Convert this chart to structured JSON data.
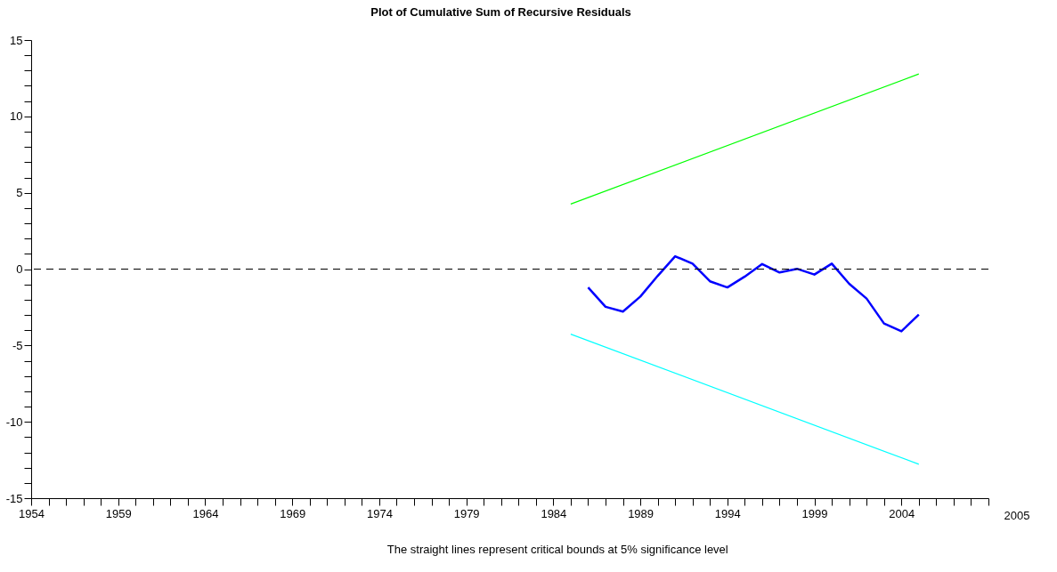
{
  "chart_data": {
    "type": "line",
    "title": "Plot of Cumulative Sum of Recursive Residuals",
    "annotations": [
      "The straight lines represent critical bounds at 5% significance level",
      "2005"
    ],
    "xlim": [
      1954,
      2009
    ],
    "ylim": [
      -15,
      15
    ],
    "xticks": [
      1954,
      {
        "value": 1955,
        "label": null
      },
      {
        "value": 1956,
        "label": null
      },
      {
        "value": 1957,
        "label": null
      },
      {
        "value": 1958,
        "label": null
      },
      1959,
      {
        "value": 1960,
        "label": null
      },
      {
        "value": 1961,
        "label": null
      },
      {
        "value": 1962,
        "label": null
      },
      {
        "value": 1963,
        "label": null
      },
      1964,
      {
        "value": 1965,
        "label": null
      },
      {
        "value": 1966,
        "label": null
      },
      {
        "value": 1967,
        "label": null
      },
      {
        "value": 1968,
        "label": null
      },
      1969,
      {
        "value": 1970,
        "label": null
      },
      {
        "value": 1971,
        "label": null
      },
      {
        "value": 1972,
        "label": null
      },
      {
        "value": 1973,
        "label": null
      },
      1974,
      {
        "value": 1975,
        "label": null
      },
      {
        "value": 1976,
        "label": null
      },
      {
        "value": 1977,
        "label": null
      },
      {
        "value": 1978,
        "label": null
      },
      1979,
      {
        "value": 1980,
        "label": null
      },
      {
        "value": 1981,
        "label": null
      },
      {
        "value": 1982,
        "label": null
      },
      {
        "value": 1983,
        "label": null
      },
      1984,
      {
        "value": 1985,
        "label": null
      },
      {
        "value": 1986,
        "label": null
      },
      {
        "value": 1987,
        "label": null
      },
      {
        "value": 1988,
        "label": null
      },
      1989,
      {
        "value": 1990,
        "label": null
      },
      {
        "value": 1991,
        "label": null
      },
      {
        "value": 1992,
        "label": null
      },
      {
        "value": 1993,
        "label": null
      },
      1994,
      {
        "value": 1995,
        "label": null
      },
      {
        "value": 1996,
        "label": null
      },
      {
        "value": 1997,
        "label": null
      },
      {
        "value": 1998,
        "label": null
      },
      1999,
      {
        "value": 2000,
        "label": null
      },
      {
        "value": 2001,
        "label": null
      },
      {
        "value": 2002,
        "label": null
      },
      {
        "value": 2003,
        "label": null
      },
      2004,
      {
        "value": 2005,
        "label": null
      },
      {
        "value": 2006,
        "label": null
      },
      {
        "value": 2007,
        "label": null
      },
      {
        "value": 2008,
        "label": null
      },
      {
        "value": 2009,
        "label": null
      }
    ],
    "yticks": [
      -15,
      {
        "value": -14,
        "label": null
      },
      {
        "value": -13,
        "label": null
      },
      {
        "value": -12,
        "label": null
      },
      {
        "value": -11,
        "label": null
      },
      -10,
      {
        "value": -9,
        "label": null
      },
      {
        "value": -8,
        "label": null
      },
      {
        "value": -7,
        "label": null
      },
      {
        "value": -6,
        "label": null
      },
      -5,
      {
        "value": -4,
        "label": null
      },
      {
        "value": -3,
        "label": null
      },
      {
        "value": -2,
        "label": null
      },
      {
        "value": -1,
        "label": null
      },
      0,
      {
        "value": 1,
        "label": null
      },
      {
        "value": 2,
        "label": null
      },
      {
        "value": 3,
        "label": null
      },
      {
        "value": 4,
        "label": null
      },
      5,
      {
        "value": 6,
        "label": null
      },
      {
        "value": 7,
        "label": null
      },
      {
        "value": 8,
        "label": null
      },
      {
        "value": 9,
        "label": null
      },
      10,
      {
        "value": 11,
        "label": null
      },
      {
        "value": 12,
        "label": null
      },
      {
        "value": 13,
        "label": null
      },
      {
        "value": 14,
        "label": null
      },
      15
    ],
    "grid": false,
    "ref_lines": [
      {
        "axis": "y",
        "value": 0,
        "color": "#000000",
        "line_style": "dashed"
      }
    ],
    "series": [
      {
        "color": "#0000ff",
        "x": [
          1986,
          1987,
          1988,
          1989,
          1990,
          1991,
          1992,
          1993,
          1994,
          1995,
          1996,
          1997,
          1998,
          1999,
          2000,
          2001,
          2002,
          2003,
          2004,
          2005
        ],
        "values": [
          -1.2,
          -2.47,
          -2.78,
          -1.8,
          -0.44,
          0.84,
          0.36,
          -0.8,
          -1.2,
          -0.49,
          0.33,
          -0.22,
          0.02,
          -0.36,
          0.36,
          -0.96,
          -1.93,
          -3.56,
          -4.07,
          -2.98
        ]
      },
      {
        "color": "#00ff00",
        "x": [
          1985,
          2005
        ],
        "values": [
          4.26,
          12.78
        ]
      },
      {
        "color": "#00ffff",
        "x": [
          1985,
          2005
        ],
        "values": [
          -4.26,
          -12.78
        ]
      }
    ]
  }
}
